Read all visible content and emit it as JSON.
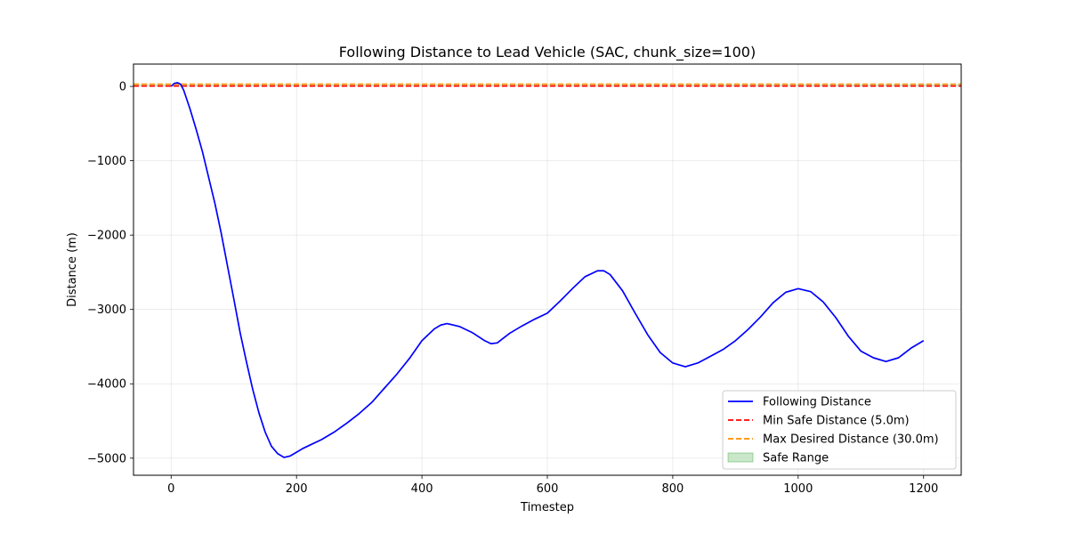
{
  "chart_data": {
    "type": "line",
    "title": "Following Distance to Lead Vehicle (SAC, chunk_size=100)",
    "xlabel": "Timestep",
    "ylabel": "Distance (m)",
    "xlim": [
      -60,
      1260
    ],
    "ylim": [
      -5230,
      300
    ],
    "xticks": [
      0,
      200,
      400,
      600,
      800,
      1000,
      1200
    ],
    "yticks": [
      0,
      -1000,
      -2000,
      -3000,
      -4000,
      -5000
    ],
    "xtick_labels": [
      "0",
      "200",
      "400",
      "600",
      "800",
      "1000",
      "1200"
    ],
    "ytick_labels": [
      "0",
      "−1000",
      "−2000",
      "−3000",
      "−4000",
      "−5000"
    ],
    "grid": true,
    "legend_position": "lower-right",
    "legend": [
      {
        "label": "Following Distance",
        "kind": "line",
        "color": "#0000ff"
      },
      {
        "label": "Min Safe Distance (5.0m)",
        "kind": "dashed",
        "color": "#ff0000"
      },
      {
        "label": "Max Desired Distance (30.0m)",
        "kind": "dashed",
        "color": "#ff8c00"
      },
      {
        "label": "Safe Range",
        "kind": "patch",
        "color": "#2ca02c"
      }
    ],
    "series": [
      {
        "name": "Following Distance",
        "color": "#0000ff",
        "x": [
          0,
          5,
          10,
          15,
          20,
          30,
          40,
          50,
          60,
          70,
          80,
          90,
          100,
          110,
          120,
          130,
          140,
          150,
          160,
          170,
          180,
          190,
          200,
          210,
          220,
          240,
          260,
          280,
          300,
          320,
          340,
          360,
          380,
          400,
          420,
          430,
          440,
          460,
          480,
          500,
          510,
          520,
          540,
          560,
          580,
          600,
          620,
          640,
          660,
          680,
          690,
          700,
          720,
          740,
          760,
          780,
          800,
          820,
          840,
          860,
          880,
          900,
          920,
          940,
          960,
          980,
          1000,
          1020,
          1040,
          1060,
          1080,
          1100,
          1120,
          1140,
          1160,
          1180,
          1200
        ],
        "y": [
          0,
          40,
          50,
          30,
          -50,
          -300,
          -580,
          -880,
          -1230,
          -1580,
          -1980,
          -2420,
          -2860,
          -3310,
          -3700,
          -4070,
          -4390,
          -4650,
          -4840,
          -4940,
          -4990,
          -4970,
          -4920,
          -4870,
          -4830,
          -4750,
          -4650,
          -4530,
          -4400,
          -4250,
          -4060,
          -3870,
          -3660,
          -3420,
          -3260,
          -3210,
          -3190,
          -3230,
          -3310,
          -3420,
          -3460,
          -3450,
          -3320,
          -3220,
          -3130,
          -3050,
          -2890,
          -2720,
          -2560,
          -2480,
          -2480,
          -2530,
          -2750,
          -3050,
          -3340,
          -3580,
          -3720,
          -3770,
          -3720,
          -3630,
          -3540,
          -3420,
          -3270,
          -3100,
          -2910,
          -2770,
          -2720,
          -2760,
          -2900,
          -3110,
          -3360,
          -3560,
          -3650,
          -3700,
          -3650,
          -3520,
          -3420
        ]
      },
      {
        "name": "Min Safe Distance (5.0m)",
        "color": "#ff0000",
        "constant": 5.0
      },
      {
        "name": "Max Desired Distance (30.0m)",
        "color": "#ff8c00",
        "constant": 30.0
      },
      {
        "name": "Safe Range",
        "color": "#2ca02c",
        "range": [
          5.0,
          30.0
        ]
      }
    ]
  }
}
